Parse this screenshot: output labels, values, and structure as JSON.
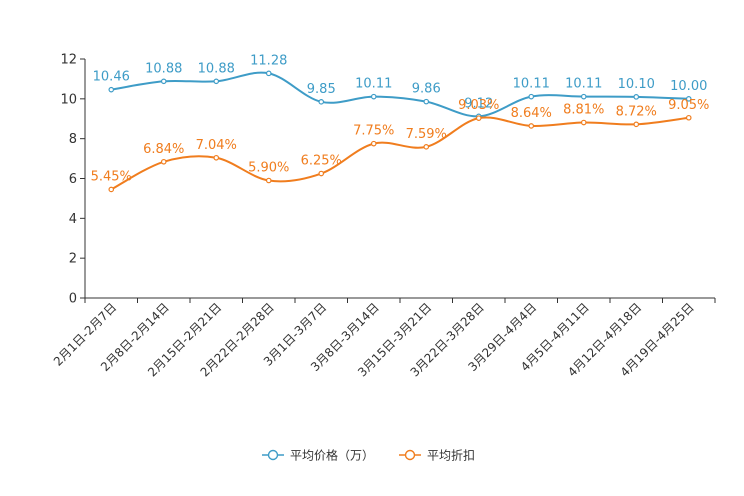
{
  "chart_data": {
    "type": "line",
    "title": "",
    "xlabel": "",
    "ylabel": "",
    "ylim": [
      0,
      12
    ],
    "yticks": [
      0,
      2,
      4,
      6,
      8,
      10,
      12
    ],
    "categories": [
      "2月1日-2月7日",
      "2月8日-2月14日",
      "2月15日-2月21日",
      "2月22日-2月28日",
      "3月1日-3月7日",
      "3月8日-3月14日",
      "3月15日-3月21日",
      "3月22日-3月28日",
      "3月29日-4月4日",
      "4月5日-4月11日",
      "4月12日-4月18日",
      "4月19日-4月25日"
    ],
    "series": [
      {
        "name": "平均价格（万）",
        "color": "#3e9cc7",
        "values": [
          10.46,
          10.88,
          10.88,
          11.28,
          9.85,
          10.11,
          9.86,
          9.12,
          10.11,
          10.11,
          10.1,
          10.0
        ],
        "labels": [
          "10.46",
          "10.88",
          "10.88",
          "11.28",
          "9.85",
          "10.11",
          "9.86",
          "9.12",
          "10.11",
          "10.11",
          "10.10",
          "10.00"
        ]
      },
      {
        "name": "平均折扣",
        "color": "#f07d1e",
        "values": [
          5.45,
          6.84,
          7.04,
          5.9,
          6.25,
          7.75,
          7.59,
          9.03,
          8.64,
          8.81,
          8.72,
          9.05
        ],
        "labels": [
          "5.45%",
          "6.84%",
          "7.04%",
          "5.90%",
          "6.25%",
          "7.75%",
          "7.59%",
          "9.03%",
          "8.64%",
          "8.81%",
          "8.72%",
          "9.05%"
        ]
      }
    ],
    "legend_position": "bottom-center",
    "grid": false
  }
}
